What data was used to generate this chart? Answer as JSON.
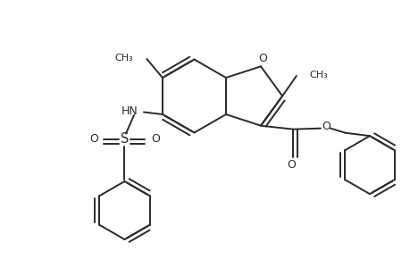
{
  "background_color": "#ffffff",
  "line_color": "#2a2a2a",
  "line_width": 1.4,
  "fig_width": 4.6,
  "fig_height": 3.0,
  "dpi": 100,
  "xlim": [
    0,
    9.2
  ],
  "ylim": [
    0,
    6.0
  ]
}
